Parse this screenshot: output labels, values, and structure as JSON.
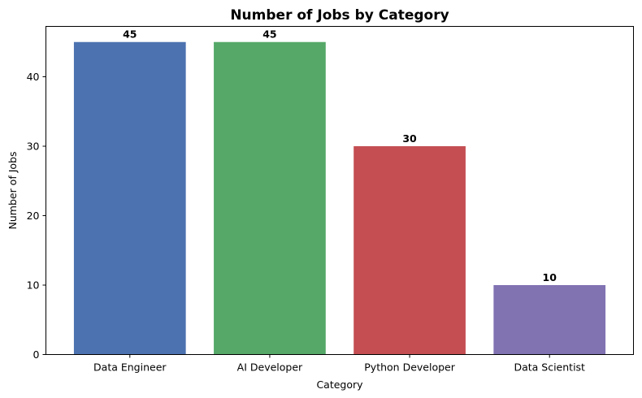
{
  "chart_data": {
    "type": "bar",
    "title": "Number of Jobs by Category",
    "xlabel": "Category",
    "ylabel": "Number of Jobs",
    "categories": [
      "Data Engineer",
      "AI Developer",
      "Python Developer",
      "Data Scientist"
    ],
    "values": [
      45,
      45,
      30,
      10
    ],
    "colors": [
      "#4c72b0",
      "#55a868",
      "#c44e52",
      "#8172b2"
    ],
    "ylim": [
      0,
      47.25
    ],
    "yticks": [
      0,
      10,
      20,
      30,
      40
    ],
    "data_labels": [
      "45",
      "45",
      "30",
      "10"
    ],
    "grid": false,
    "legend": false
  }
}
